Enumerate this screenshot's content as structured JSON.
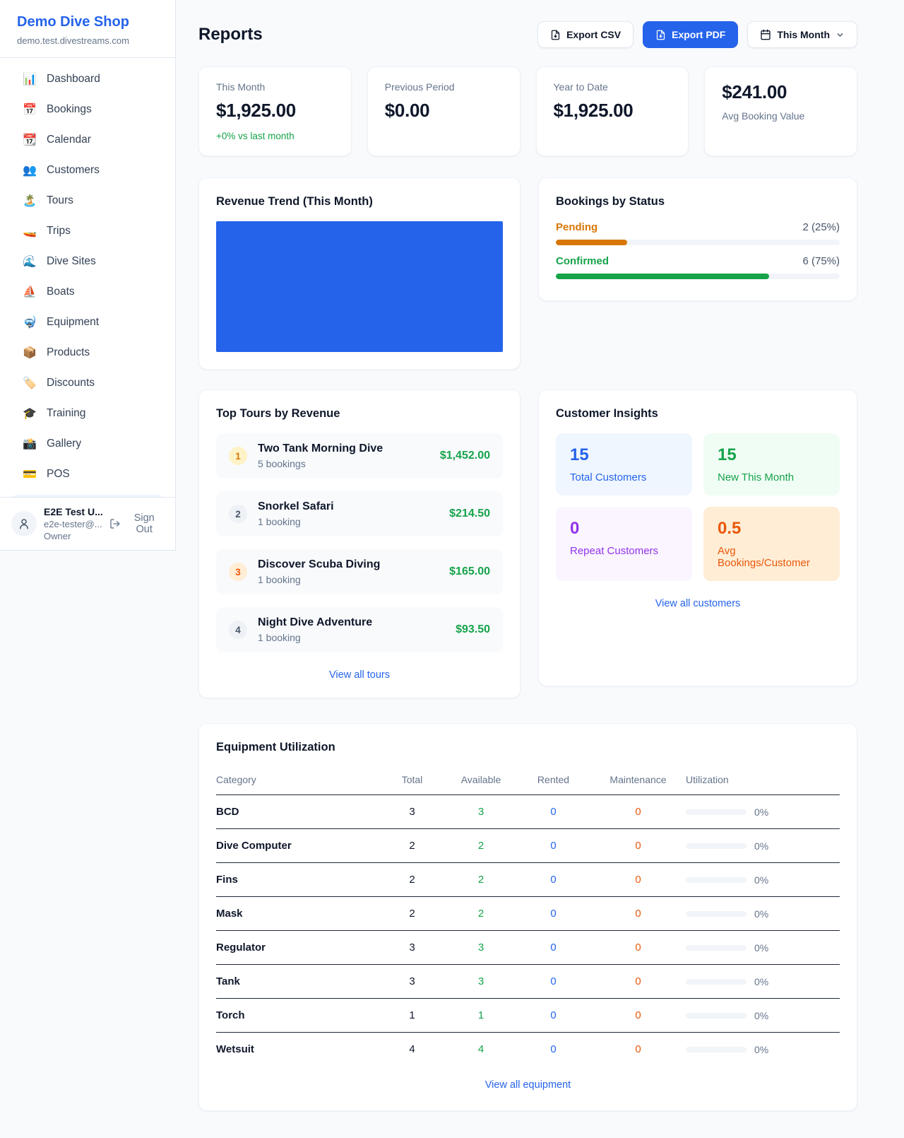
{
  "colors": {
    "accent_blue": "#2563eb",
    "green": "#16a34a",
    "orange": "#ea580c",
    "amber": "#d97706",
    "purple": "#9333ea"
  },
  "sidebar": {
    "shop_name": "Demo Dive Shop",
    "shop_domain": "demo.test.divestreams.com",
    "items": [
      {
        "icon": "📊",
        "label": "Dashboard"
      },
      {
        "icon": "📅",
        "label": "Bookings"
      },
      {
        "icon": "📆",
        "label": "Calendar"
      },
      {
        "icon": "👥",
        "label": "Customers"
      },
      {
        "icon": "🏝️",
        "label": "Tours"
      },
      {
        "icon": "🚤",
        "label": "Trips"
      },
      {
        "icon": "🌊",
        "label": "Dive Sites"
      },
      {
        "icon": "⛵",
        "label": "Boats"
      },
      {
        "icon": "🤿",
        "label": "Equipment"
      },
      {
        "icon": "📦",
        "label": "Products"
      },
      {
        "icon": "🏷️",
        "label": "Discounts"
      },
      {
        "icon": "🎓",
        "label": "Training"
      },
      {
        "icon": "📸",
        "label": "Gallery"
      },
      {
        "icon": "💳",
        "label": "POS"
      }
    ],
    "user": {
      "name": "E2E Test U...",
      "email": "e2e-tester@...",
      "role": "Owner",
      "sign_out_label": "Sign Out"
    }
  },
  "header": {
    "title": "Reports",
    "export_csv_label": "Export CSV",
    "export_pdf_label": "Export PDF",
    "period_label": "This Month"
  },
  "stats": [
    {
      "label": "This Month",
      "value": "$1,925.00",
      "note": "+0% vs last month"
    },
    {
      "label": "Previous Period",
      "value": "$0.00"
    },
    {
      "label": "Year to Date",
      "value": "$1,925.00"
    },
    {
      "label": "Avg Booking Value",
      "value": "$241.00"
    }
  ],
  "revenue_trend": {
    "title": "Revenue Trend (This Month)",
    "chart_data": {
      "type": "bar",
      "title": "Revenue Trend (This Month)",
      "categories": [
        "This Month"
      ],
      "values": [
        1925.0
      ],
      "bar_color": "#2563eb",
      "xlabel": "",
      "ylabel": "",
      "notes": "single bar filling entire plot area; no axes, ticks or gridlines visible"
    }
  },
  "bookings_by_status": {
    "title": "Bookings by Status",
    "rows": [
      {
        "label": "Pending",
        "count_text": "2 (25%)",
        "count": 2,
        "percent": 25,
        "color": "#d97706"
      },
      {
        "label": "Confirmed",
        "count_text": "6 (75%)",
        "count": 6,
        "percent": 75,
        "color": "#16a34a"
      }
    ]
  },
  "top_tours": {
    "title": "Top Tours by Revenue",
    "view_all_label": "View all tours",
    "rows": [
      {
        "rank": "1",
        "name": "Two Tank Morning Dive",
        "bookings": "5 bookings",
        "amount": "$1,452.00"
      },
      {
        "rank": "2",
        "name": "Snorkel Safari",
        "bookings": "1 booking",
        "amount": "$214.50"
      },
      {
        "rank": "3",
        "name": "Discover Scuba Diving",
        "bookings": "1 booking",
        "amount": "$165.00"
      },
      {
        "rank": "4",
        "name": "Night Dive Adventure",
        "bookings": "1 booking",
        "amount": "$93.50"
      }
    ]
  },
  "customer_insights": {
    "title": "Customer Insights",
    "view_all_label": "View all customers",
    "tiles": [
      {
        "value": "15",
        "label": "Total Customers",
        "color": "#2563eb",
        "bg": "#eff6ff"
      },
      {
        "value": "15",
        "label": "New This Month",
        "color": "#16a34a",
        "bg": "#f0fdf4"
      },
      {
        "value": "0",
        "label": "Repeat Customers",
        "color": "#9333ea",
        "bg": "#faf5ff"
      },
      {
        "value": "0.5",
        "label": "Avg Bookings/Customer",
        "color": "#ea580c",
        "bg": "#ffedd5"
      }
    ]
  },
  "equipment": {
    "title": "Equipment Utilization",
    "view_all_label": "View all equipment",
    "columns": [
      "Category",
      "Total",
      "Available",
      "Rented",
      "Maintenance",
      "Utilization"
    ],
    "rows": [
      {
        "category": "BCD",
        "total": "3",
        "available": "3",
        "rented": "0",
        "maintenance": "0",
        "utilization": "0%",
        "utilization_percent": 0
      },
      {
        "category": "Dive Computer",
        "total": "2",
        "available": "2",
        "rented": "0",
        "maintenance": "0",
        "utilization": "0%",
        "utilization_percent": 0
      },
      {
        "category": "Fins",
        "total": "2",
        "available": "2",
        "rented": "0",
        "maintenance": "0",
        "utilization": "0%",
        "utilization_percent": 0
      },
      {
        "category": "Mask",
        "total": "2",
        "available": "2",
        "rented": "0",
        "maintenance": "0",
        "utilization": "0%",
        "utilization_percent": 0
      },
      {
        "category": "Regulator",
        "total": "3",
        "available": "3",
        "rented": "0",
        "maintenance": "0",
        "utilization": "0%",
        "utilization_percent": 0
      },
      {
        "category": "Tank",
        "total": "3",
        "available": "3",
        "rented": "0",
        "maintenance": "0",
        "utilization": "0%",
        "utilization_percent": 0
      },
      {
        "category": "Torch",
        "total": "1",
        "available": "1",
        "rented": "0",
        "maintenance": "0",
        "utilization": "0%",
        "utilization_percent": 0
      },
      {
        "category": "Wetsuit",
        "total": "4",
        "available": "4",
        "rented": "0",
        "maintenance": "0",
        "utilization": "0%",
        "utilization_percent": 0
      }
    ]
  }
}
